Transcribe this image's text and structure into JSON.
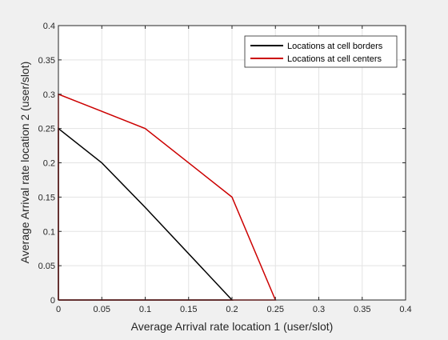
{
  "chart_data": {
    "type": "line",
    "title": "",
    "xlabel": "Average Arrival rate location 1 (user/slot)",
    "ylabel": "Average Arrival rate location 2 (user/slot)",
    "xlim": [
      0,
      0.4
    ],
    "ylim": [
      0,
      0.4
    ],
    "x_ticks": [
      "0",
      "0.05",
      "0.1",
      "0.15",
      "0.2",
      "0.25",
      "0.3",
      "0.35",
      "0.4"
    ],
    "y_ticks": [
      "0",
      "0.05",
      "0.1",
      "0.15",
      "0.2",
      "0.25",
      "0.3",
      "0.35",
      "0.4"
    ],
    "grid": true,
    "legend_position": "top-right",
    "series": [
      {
        "name": "Locations at cell borders",
        "color": "#000000",
        "points": [
          [
            0,
            0
          ],
          [
            0,
            0.25
          ],
          [
            0.05,
            0.2
          ],
          [
            0.1,
            0.135
          ],
          [
            0.2,
            0
          ],
          [
            0,
            0
          ]
        ]
      },
      {
        "name": "Locations at cell centers",
        "color": "#cc0000",
        "points": [
          [
            0,
            0
          ],
          [
            0,
            0.3
          ],
          [
            0.1,
            0.25
          ],
          [
            0.2,
            0.15
          ],
          [
            0.25,
            0
          ],
          [
            0,
            0
          ]
        ]
      }
    ]
  }
}
